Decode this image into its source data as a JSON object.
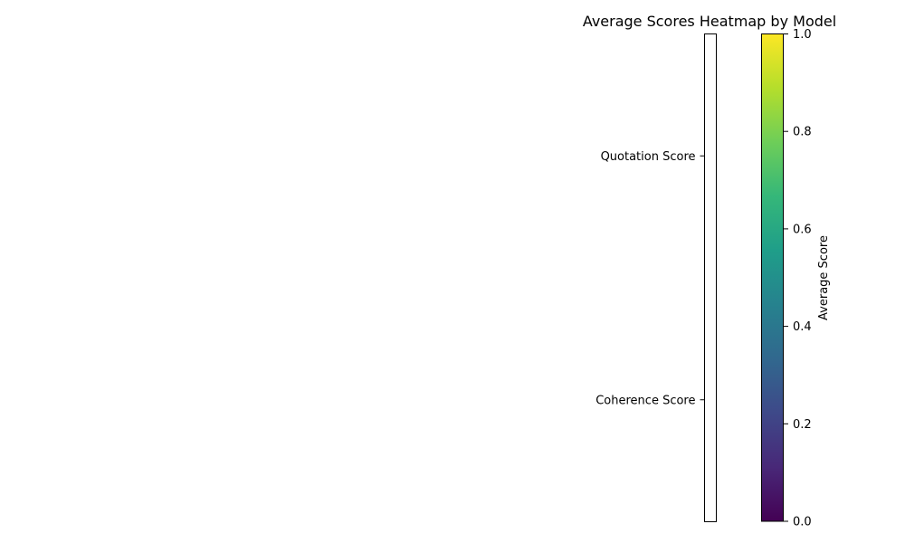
{
  "chart_data": {
    "type": "heatmap",
    "title": "Average Scores Heatmap by Model",
    "xlabel": "",
    "ylabel": "",
    "rows": [
      "Quotation Score",
      "Coherence Score"
    ],
    "columns": [],
    "values": [
      [],
      []
    ],
    "colorbar": {
      "label": "Average Score",
      "colormap": "viridis",
      "range": [
        0,
        1
      ],
      "ticks": [
        "0.0",
        "0.2",
        "0.4",
        "0.6",
        "0.8",
        "1.0"
      ],
      "tick_values": [
        0,
        0.2,
        0.4,
        0.6,
        0.8,
        1.0
      ],
      "stops": [
        "#440154",
        "#482878",
        "#3e4989",
        "#31688e",
        "#26828e",
        "#1f9e89",
        "#35b779",
        "#6ece58",
        "#b5de2b",
        "#fde725"
      ]
    },
    "grid": false
  }
}
